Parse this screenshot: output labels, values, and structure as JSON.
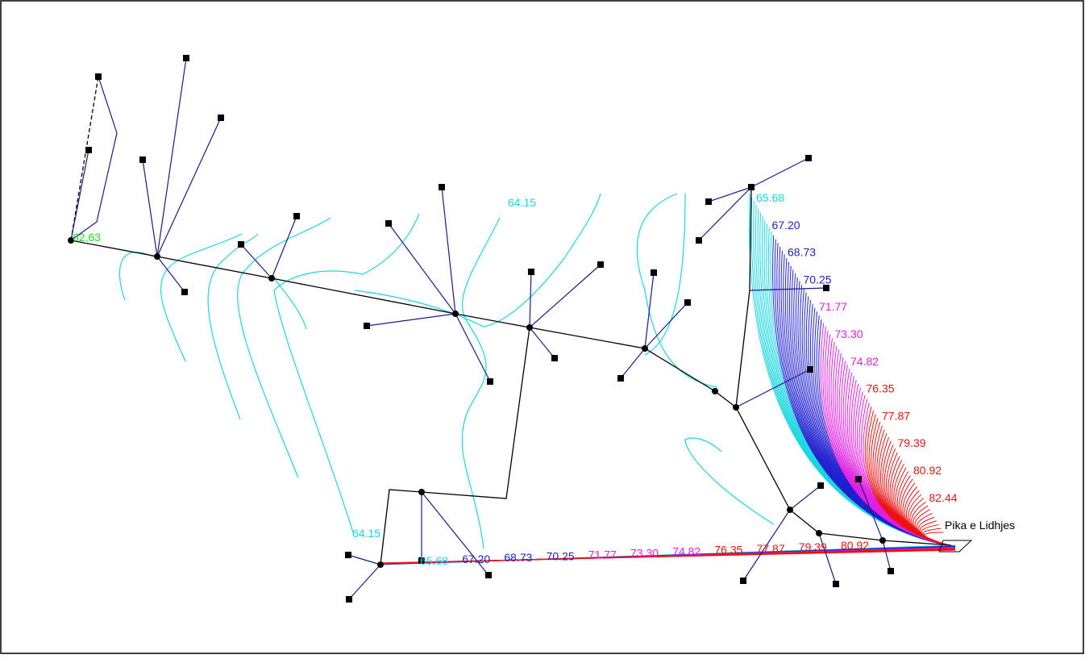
{
  "callout": "Pika e Lidhjes",
  "contour_labels": {
    "right": [
      {
        "text": "65.68",
        "color": "#19d6e0"
      },
      {
        "text": "67.20",
        "color": "#2020d0"
      },
      {
        "text": "68.73",
        "color": "#2020d0"
      },
      {
        "text": "70.25",
        "color": "#2020d0"
      },
      {
        "text": "71.77",
        "color": "#e020e0"
      },
      {
        "text": "73.30",
        "color": "#e020e0"
      },
      {
        "text": "74.82",
        "color": "#e020e0"
      },
      {
        "text": "76.35",
        "color": "#ee1111"
      },
      {
        "text": "77.87",
        "color": "#ee1111"
      },
      {
        "text": "79.39",
        "color": "#ee1111"
      },
      {
        "text": "80.92",
        "color": "#ee1111"
      },
      {
        "text": "82.44",
        "color": "#ee1111"
      }
    ],
    "bottom": [
      {
        "text": "65.68",
        "color": "#19d6e0"
      },
      {
        "text": "67.20",
        "color": "#2020d0"
      },
      {
        "text": "68.73",
        "color": "#2020d0"
      },
      {
        "text": "70.25",
        "color": "#2020d0"
      },
      {
        "text": "71.77",
        "color": "#e020e0"
      },
      {
        "text": "73.30",
        "color": "#e020e0"
      },
      {
        "text": "74.82",
        "color": "#e020e0"
      },
      {
        "text": "76.35",
        "color": "#ee1111"
      },
      {
        "text": "77.87",
        "color": "#ee1111"
      },
      {
        "text": "79.39",
        "color": "#ee1111"
      },
      {
        "text": "80.92",
        "color": "#ee1111"
      }
    ],
    "other": [
      {
        "text": "62.63",
        "color": "#22dd22"
      },
      {
        "text": "64.15",
        "color": "#19d6e0"
      },
      {
        "text": "64.15",
        "color": "#19d6e0"
      }
    ]
  }
}
